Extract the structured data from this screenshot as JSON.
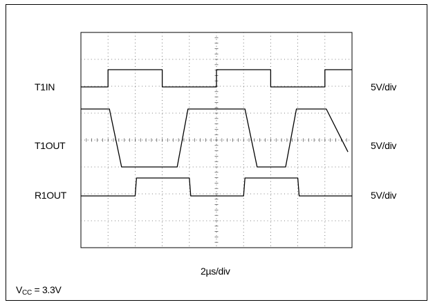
{
  "chart_data": {
    "type": "line",
    "grid": true,
    "x_divisions": 10,
    "y_divisions": 8,
    "x_scale": "2µs/div",
    "x_range_us": [
      0,
      20
    ],
    "trace_color": "#000000",
    "series": [
      {
        "name": "T1IN",
        "scale": "5V/div",
        "unit": "V",
        "levels": [
          0,
          3.3
        ],
        "points": [
          [
            0,
            0
          ],
          [
            2,
            0
          ],
          [
            2,
            3.3
          ],
          [
            6,
            3.3
          ],
          [
            6,
            0
          ],
          [
            10,
            0
          ],
          [
            10,
            3.3
          ],
          [
            14,
            3.3
          ],
          [
            14,
            0
          ],
          [
            18,
            0
          ],
          [
            18,
            3.3
          ],
          [
            20,
            3.3
          ]
        ]
      },
      {
        "name": "T1OUT",
        "scale": "5V/div",
        "unit": "V",
        "levels": [
          5.4,
          -5.4
        ],
        "points": [
          [
            0,
            5.4
          ],
          [
            2.1,
            5.4
          ],
          [
            3.0,
            -5.4
          ],
          [
            7.1,
            -5.4
          ],
          [
            7.9,
            5.4
          ],
          [
            12.1,
            5.4
          ],
          [
            13.0,
            -5.4
          ],
          [
            15.1,
            -5.4
          ],
          [
            15.9,
            5.4
          ],
          [
            18.1,
            5.4
          ],
          [
            19.7,
            -2.6
          ]
        ]
      },
      {
        "name": "R1OUT",
        "scale": "5V/div",
        "unit": "V",
        "levels": [
          0,
          3.3
        ],
        "points": [
          [
            0,
            0
          ],
          [
            4.0,
            0
          ],
          [
            4.1,
            3.3
          ],
          [
            8.0,
            3.3
          ],
          [
            8.1,
            0
          ],
          [
            12.0,
            0
          ],
          [
            12.1,
            3.3
          ],
          [
            16.0,
            3.3
          ],
          [
            16.1,
            0
          ],
          [
            20,
            0
          ]
        ]
      }
    ]
  },
  "labels": {
    "t1in": "T1IN",
    "t1out": "T1OUT",
    "r1out": "R1OUT",
    "scale_t1in": "5V/div",
    "scale_t1out": "5V/div",
    "scale_r1out": "5V/div",
    "x_scale": "2µs/div",
    "vcc_v": "V",
    "vcc_sub": "CC",
    "vcc_value": " = 3.3V"
  }
}
